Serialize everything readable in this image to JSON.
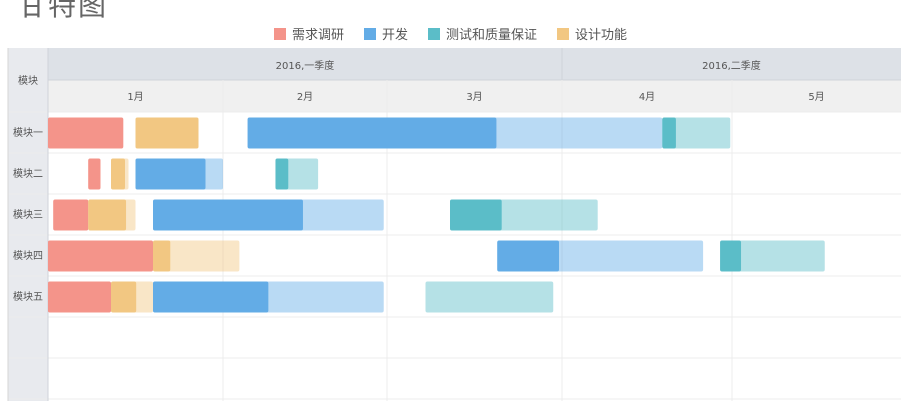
{
  "title": "甘特图",
  "legend": [
    {
      "label": "需求调研",
      "color": "#f4948a"
    },
    {
      "label": "开发",
      "color": "#63ace6"
    },
    {
      "label": "测试和质量保证",
      "color": "#5bbdc8"
    },
    {
      "label": "设计功能",
      "color": "#f2c782"
    }
  ],
  "corner_label": "模块",
  "chart_data": {
    "type": "bar",
    "subtype": "gantt",
    "quarters": [
      "2016,一季度",
      "2016,二季度"
    ],
    "months": [
      "1月",
      "2月",
      "3月",
      "4月",
      "5月"
    ],
    "rows": [
      "模块一",
      "模块二",
      "模块三",
      "模块四",
      "模块五"
    ],
    "x_unit": "month index (0 = start of 1月)",
    "xlim": [
      0,
      5
    ],
    "tasks": [
      {
        "row": 0,
        "cat": 0,
        "start": 0.0,
        "end": 0.43,
        "progress": 1.0
      },
      {
        "row": 0,
        "cat": 3,
        "start": 0.5,
        "end": 0.86,
        "progress": 1.0
      },
      {
        "row": 0,
        "cat": 1,
        "start": 1.15,
        "end": 3.59,
        "progress": 0.6
      },
      {
        "row": 0,
        "cat": 2,
        "start": 3.59,
        "end": 3.99,
        "progress": 0.2
      },
      {
        "row": 1,
        "cat": 0,
        "start": 0.23,
        "end": 0.3,
        "progress": 1.0
      },
      {
        "row": 1,
        "cat": 3,
        "start": 0.36,
        "end": 0.46,
        "progress": 0.8
      },
      {
        "row": 1,
        "cat": 1,
        "start": 0.5,
        "end": 1.0,
        "progress": 0.8
      },
      {
        "row": 1,
        "cat": 2,
        "start": 1.32,
        "end": 1.58,
        "progress": 0.3
      },
      {
        "row": 2,
        "cat": 0,
        "start": 0.03,
        "end": 0.23,
        "progress": 1.0
      },
      {
        "row": 2,
        "cat": 3,
        "start": 0.23,
        "end": 0.5,
        "progress": 0.8
      },
      {
        "row": 2,
        "cat": 1,
        "start": 0.6,
        "end": 1.98,
        "progress": 0.65
      },
      {
        "row": 2,
        "cat": 2,
        "start": 2.36,
        "end": 3.21,
        "progress": 0.35
      },
      {
        "row": 3,
        "cat": 0,
        "start": 0.0,
        "end": 0.6,
        "progress": 1.0
      },
      {
        "row": 3,
        "cat": 3,
        "start": 0.6,
        "end": 1.1,
        "progress": 0.2
      },
      {
        "row": 3,
        "cat": 1,
        "start": 2.63,
        "end": 3.83,
        "progress": 0.3
      },
      {
        "row": 3,
        "cat": 2,
        "start": 3.93,
        "end": 4.53,
        "progress": 0.2
      },
      {
        "row": 4,
        "cat": 0,
        "start": 0.0,
        "end": 0.36,
        "progress": 1.0
      },
      {
        "row": 4,
        "cat": 3,
        "start": 0.36,
        "end": 0.6,
        "progress": 0.6
      },
      {
        "row": 4,
        "cat": 1,
        "start": 0.6,
        "end": 1.98,
        "progress": 0.5
      },
      {
        "row": 4,
        "cat": 2,
        "start": 2.22,
        "end": 2.95,
        "progress": 0.0
      }
    ]
  }
}
